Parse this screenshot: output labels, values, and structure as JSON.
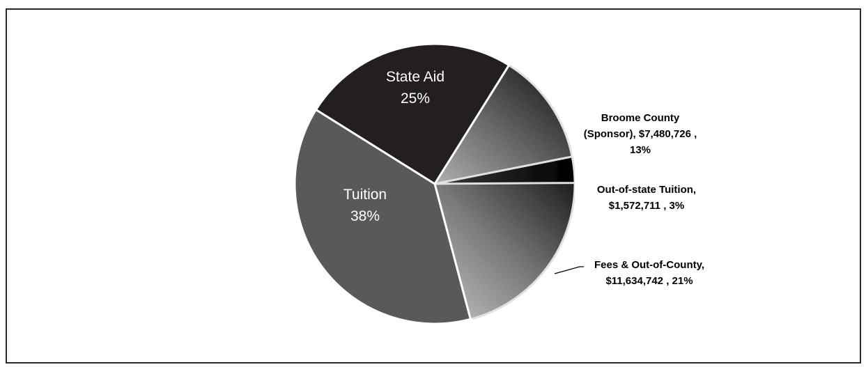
{
  "chart_data": {
    "type": "pie",
    "slices": [
      {
        "name": "State Aid",
        "percent": 25,
        "label_lines": [
          "State Aid",
          "25%"
        ],
        "color": "#231f20",
        "label_color": "#ffffff",
        "style": "solid"
      },
      {
        "name": "Broome County (Sponsor)",
        "value": 7480726,
        "percent": 13,
        "label_lines": [
          "Broome County",
          "(Sponsor),  $7,480,726 ,",
          "13%"
        ],
        "color": "#7a7a7a",
        "label_color": "#000000",
        "style": "gradient-dark"
      },
      {
        "name": "Out-of-state Tuition",
        "value": 1572711,
        "percent": 3,
        "label_lines": [
          "Out-of-state Tuition,",
          "$1,572,711 , 3%"
        ],
        "color": "#111111",
        "label_color": "#000000",
        "style": "dark"
      },
      {
        "name": "Fees & Out-of-County",
        "value": 11634742,
        "percent": 21,
        "label_lines": [
          "Fees & Out-of-County,",
          "$11,634,742 , 21%"
        ],
        "color": "#9a9a9a",
        "label_color": "#000000",
        "style": "gradient-light"
      },
      {
        "name": "Tuition",
        "percent": 38,
        "label_lines": [
          "Tuition",
          "38%"
        ],
        "color": "#595959",
        "label_color": "#ffffff",
        "style": "solid"
      }
    ]
  }
}
